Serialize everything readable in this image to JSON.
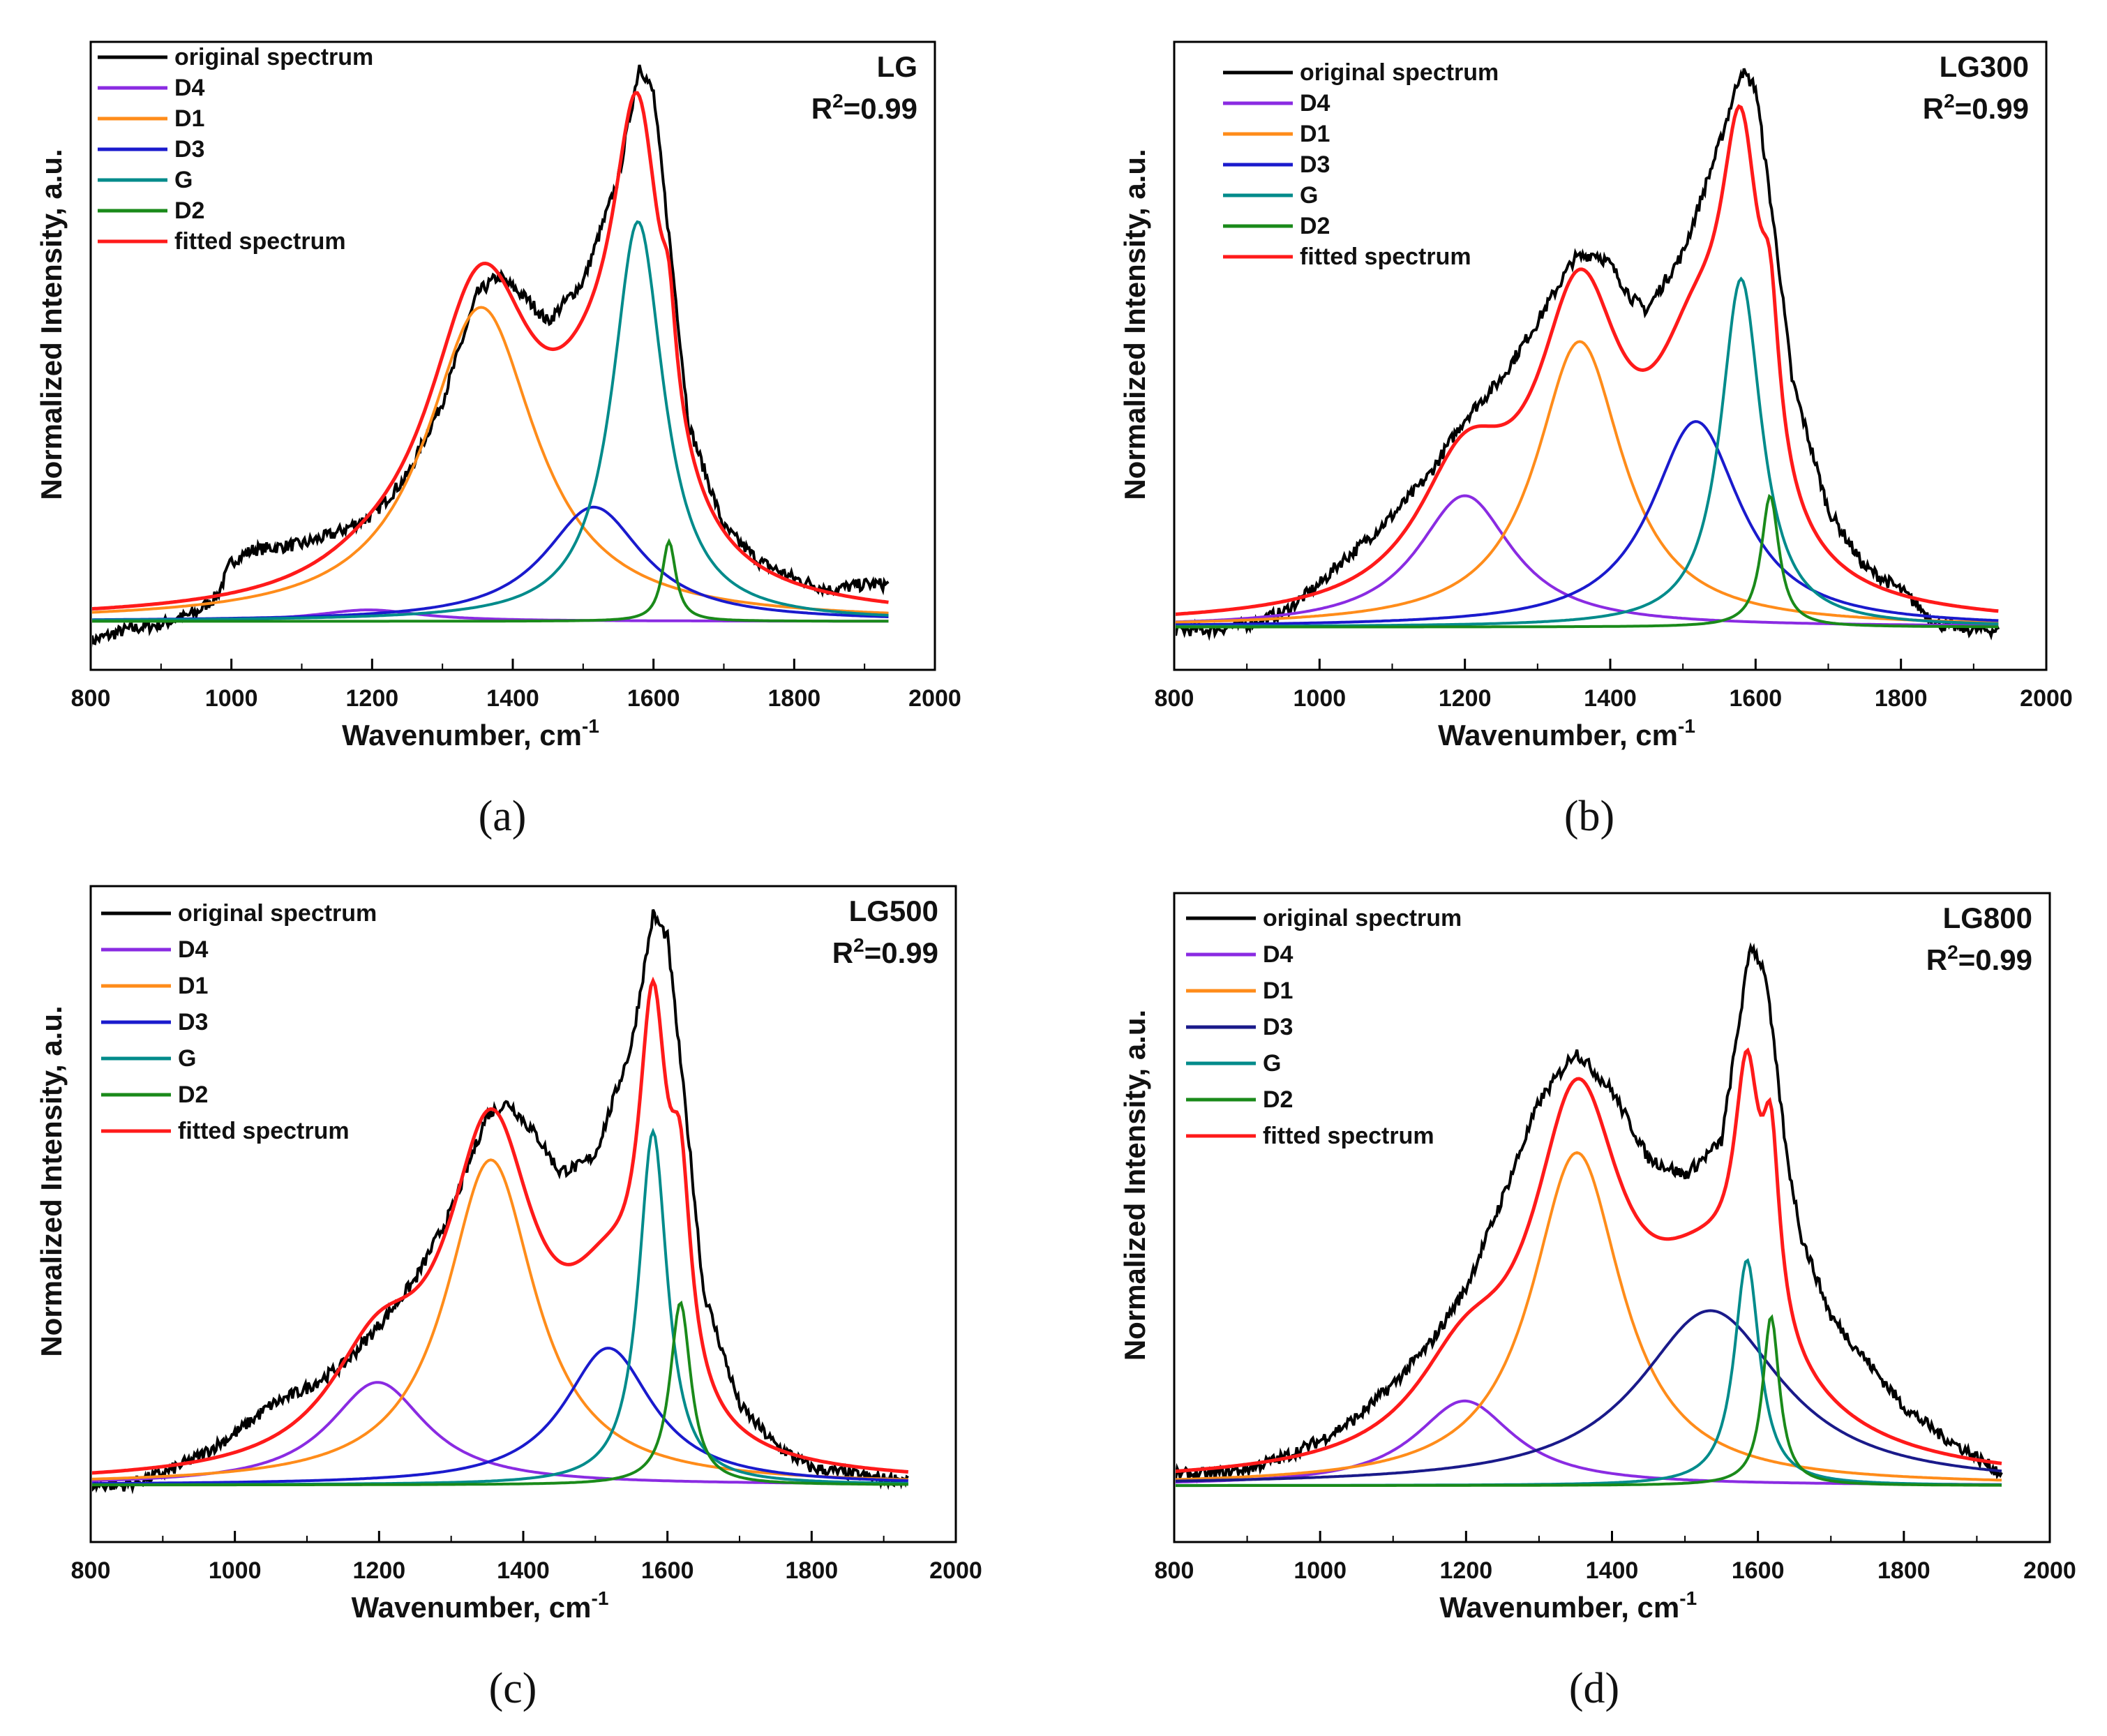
{
  "figure": {
    "axis_unit_superscript": "-1"
  },
  "chart_data": [
    {
      "type": "line",
      "panel_label": "(a)",
      "sample_label": "LG",
      "r_squared_text": "R2=0.99",
      "r_squared_prefix": "R",
      "r_squared_exponent": "2",
      "r_squared_value": "=0.99",
      "xlabel": "Wavenumber, cm-1",
      "xlabel_text": "Wavenumber, cm",
      "ylabel": "Normalized Intensity, a.u.",
      "xlim": [
        800,
        2000
      ],
      "ylim": [
        -0.05,
        1.05
      ],
      "x_ticks": [
        800,
        1000,
        1200,
        1400,
        1600,
        1800,
        2000
      ],
      "x_tick_labels": [
        "800",
        "1000",
        "1200",
        "1400",
        "1600",
        "1800",
        "2000"
      ],
      "x_data_range": [
        800,
        1935
      ],
      "legend": [
        "original spectrum",
        "D4",
        "D1",
        "D3",
        "G",
        "D2",
        "fitted spectrum"
      ],
      "series": [
        {
          "name": "original spectrum",
          "color": "#000000",
          "x": [
            800,
            850,
            900,
            950,
            980,
            1000,
            1030,
            1100,
            1150,
            1200,
            1250,
            1300,
            1350,
            1380,
            1420,
            1450,
            1500,
            1550,
            1580,
            1600,
            1630,
            1650,
            1700,
            1750,
            1800,
            1850,
            1900,
            1935
          ],
          "values": [
            0.0,
            0.02,
            0.03,
            0.05,
            0.08,
            0.14,
            0.16,
            0.17,
            0.19,
            0.22,
            0.29,
            0.42,
            0.61,
            0.64,
            0.6,
            0.56,
            0.63,
            0.81,
            1.01,
            0.96,
            0.62,
            0.38,
            0.2,
            0.14,
            0.11,
            0.09,
            0.1,
            0.1
          ]
        },
        {
          "name": "D4",
          "color": "#8a2be2",
          "peak_center": 1195,
          "peak_height": 0.02,
          "peak_width": 180
        },
        {
          "name": "D1",
          "color": "#ff8c1a",
          "peak_center": 1355,
          "peak_height": 0.55,
          "peak_width": 190
        },
        {
          "name": "D3",
          "color": "#1a1acd",
          "peak_center": 1515,
          "peak_height": 0.2,
          "peak_width": 170
        },
        {
          "name": "G",
          "color": "#008b8b",
          "peak_center": 1578,
          "peak_height": 0.7,
          "peak_width": 88
        },
        {
          "name": "D2",
          "color": "#1a8a1a",
          "peak_center": 1622,
          "peak_height": 0.14,
          "peak_width": 24
        },
        {
          "name": "fitted spectrum",
          "color": "#ff1a1a",
          "fit_of": [
            "D4",
            "D1",
            "D3",
            "G",
            "D2"
          ]
        }
      ],
      "baseline_level": 0.035
    },
    {
      "type": "line",
      "panel_label": "(b)",
      "sample_label": "LG300",
      "r_squared_text": "R2=0.99",
      "r_squared_prefix": "R",
      "r_squared_exponent": "2",
      "r_squared_value": "=0.99",
      "xlabel": "Wavenumber, cm-1",
      "xlabel_text": "Wavenumber, cm",
      "ylabel": "Normalized Intensity, a.u.",
      "xlim": [
        800,
        2000
      ],
      "ylim": [
        -0.05,
        1.05
      ],
      "x_ticks": [
        800,
        1000,
        1200,
        1400,
        1600,
        1800,
        2000
      ],
      "x_tick_labels": [
        "800",
        "1000",
        "1200",
        "1400",
        "1600",
        "1800",
        "2000"
      ],
      "x_data_range": [
        800,
        1935
      ],
      "legend": [
        "original spectrum",
        "D4",
        "D1",
        "D3",
        "G",
        "D2",
        "fitted spectrum"
      ],
      "series": [
        {
          "name": "original spectrum",
          "color": "#000000",
          "x": [
            800,
            850,
            900,
            950,
            1000,
            1030,
            1050,
            1100,
            1150,
            1200,
            1250,
            1300,
            1350,
            1380,
            1400,
            1430,
            1450,
            1500,
            1550,
            1580,
            1600,
            1630,
            1650,
            1700,
            1750,
            1800,
            1850,
            1900,
            1935
          ],
          "values": [
            0.02,
            0.02,
            0.03,
            0.05,
            0.1,
            0.14,
            0.16,
            0.22,
            0.29,
            0.39,
            0.46,
            0.56,
            0.67,
            0.68,
            0.66,
            0.6,
            0.58,
            0.68,
            0.87,
            1.0,
            0.97,
            0.68,
            0.46,
            0.23,
            0.13,
            0.09,
            0.03,
            0.02,
            0.02
          ]
        },
        {
          "name": "D4",
          "color": "#8a2be2",
          "peak_center": 1200,
          "peak_height": 0.23,
          "peak_width": 160
        },
        {
          "name": "D1",
          "color": "#ff8c1a",
          "peak_center": 1358,
          "peak_height": 0.5,
          "peak_width": 145
        },
        {
          "name": "D3",
          "color": "#1a1acd",
          "peak_center": 1518,
          "peak_height": 0.36,
          "peak_width": 150
        },
        {
          "name": "G",
          "color": "#008b8b",
          "peak_center": 1580,
          "peak_height": 0.61,
          "peak_width": 68
        },
        {
          "name": "D2",
          "color": "#1a8a1a",
          "peak_center": 1620,
          "peak_height": 0.23,
          "peak_width": 30
        },
        {
          "name": "fitted spectrum",
          "color": "#ff1a1a",
          "fit_of": [
            "D4",
            "D1",
            "D3",
            "G",
            "D2"
          ]
        }
      ],
      "baseline_level": 0.025
    },
    {
      "type": "line",
      "panel_label": "(c)",
      "sample_label": "LG500",
      "r_squared_text": "R2=0.99",
      "r_squared_prefix": "R",
      "r_squared_exponent": "2",
      "r_squared_value": "=0.99",
      "xlabel": "Wavenumber, cm-1",
      "xlabel_text": "Wavenumber, cm",
      "ylabel": "Normalized Intensity, a.u.",
      "xlim": [
        800,
        2000
      ],
      "ylim": [
        -0.1,
        1.05
      ],
      "x_ticks": [
        800,
        1000,
        1200,
        1400,
        1600,
        1800,
        2000
      ],
      "x_tick_labels": [
        "800",
        "1000",
        "1200",
        "1400",
        "1600",
        "1800",
        "2000"
      ],
      "x_data_range": [
        800,
        1935
      ],
      "legend": [
        "original spectrum",
        "D4",
        "D1",
        "D3",
        "G",
        "D2",
        "fitted spectrum"
      ],
      "series": [
        {
          "name": "original spectrum",
          "color": "#000000",
          "x": [
            800,
            850,
            900,
            950,
            1000,
            1050,
            1100,
            1150,
            1200,
            1250,
            1300,
            1350,
            1380,
            1420,
            1450,
            1480,
            1500,
            1550,
            1580,
            1600,
            1630,
            1650,
            1700,
            1750,
            1800,
            1850,
            1900,
            1935
          ],
          "values": [
            0.0,
            0.0,
            0.02,
            0.05,
            0.09,
            0.14,
            0.17,
            0.21,
            0.28,
            0.36,
            0.48,
            0.65,
            0.67,
            0.61,
            0.55,
            0.56,
            0.58,
            0.77,
            1.0,
            0.96,
            0.6,
            0.34,
            0.14,
            0.07,
            0.03,
            0.02,
            0.01,
            0.01
          ]
        },
        {
          "name": "D4",
          "color": "#8a2be2",
          "peak_center": 1198,
          "peak_height": 0.18,
          "peak_width": 165
        },
        {
          "name": "D1",
          "color": "#ff8c1a",
          "peak_center": 1355,
          "peak_height": 0.57,
          "peak_width": 150
        },
        {
          "name": "D3",
          "color": "#1a1acd",
          "peak_center": 1518,
          "peak_height": 0.24,
          "peak_width": 150
        },
        {
          "name": "G",
          "color": "#008b8b",
          "peak_center": 1580,
          "peak_height": 0.62,
          "peak_width": 48
        },
        {
          "name": "D2",
          "color": "#1a8a1a",
          "peak_center": 1618,
          "peak_height": 0.32,
          "peak_width": 35
        },
        {
          "name": "fitted spectrum",
          "color": "#ff1a1a",
          "fit_of": [
            "D4",
            "D1",
            "D3",
            "G",
            "D2"
          ]
        }
      ],
      "baseline_level": 0.0
    },
    {
      "type": "line",
      "panel_label": "(d)",
      "sample_label": "LG800",
      "r_squared_text": "R2=0.99",
      "r_squared_prefix": "R",
      "r_squared_exponent": "2",
      "r_squared_value": "=0.99",
      "xlabel": "Wavenumber, cm-1",
      "xlabel_text": "Wavenumber, cm",
      "ylabel": "Normalized Intensity, a.u.",
      "xlim": [
        800,
        2000
      ],
      "ylim": [
        -0.1,
        1.05
      ],
      "x_ticks": [
        800,
        1000,
        1200,
        1400,
        1600,
        1800,
        2000
      ],
      "x_tick_labels": [
        "800",
        "1000",
        "1200",
        "1400",
        "1600",
        "1800",
        "2000"
      ],
      "x_data_range": [
        800,
        1935
      ],
      "legend": [
        "original spectrum",
        "D4",
        "D1",
        "D3",
        "G",
        "D2",
        "fitted spectrum"
      ],
      "series": [
        {
          "name": "original spectrum",
          "color": "#000000",
          "x": [
            800,
            850,
            900,
            950,
            1000,
            1050,
            1100,
            1150,
            1200,
            1250,
            1300,
            1350,
            1400,
            1450,
            1500,
            1550,
            1590,
            1610,
            1640,
            1660,
            1700,
            1750,
            1800,
            1850,
            1900,
            1935
          ],
          "values": [
            0.02,
            0.02,
            0.03,
            0.05,
            0.08,
            0.12,
            0.18,
            0.25,
            0.35,
            0.51,
            0.68,
            0.77,
            0.7,
            0.58,
            0.55,
            0.61,
            0.96,
            0.91,
            0.58,
            0.44,
            0.3,
            0.22,
            0.14,
            0.09,
            0.05,
            0.02
          ]
        },
        {
          "name": "D4",
          "color": "#8a2be2",
          "peak_center": 1198,
          "peak_height": 0.15,
          "peak_width": 165
        },
        {
          "name": "D1",
          "color": "#ff8c1a",
          "peak_center": 1352,
          "peak_height": 0.59,
          "peak_width": 150
        },
        {
          "name": "D3",
          "color": "#1a1a8a",
          "peak_center": 1535,
          "peak_height": 0.31,
          "peak_width": 240
        },
        {
          "name": "G",
          "color": "#008b8b",
          "peak_center": 1585,
          "peak_height": 0.4,
          "peak_width": 42
        },
        {
          "name": "D2",
          "color": "#1a8a1a",
          "peak_center": 1618,
          "peak_height": 0.3,
          "peak_width": 28
        },
        {
          "name": "fitted spectrum",
          "color": "#ff1a1a",
          "fit_of": [
            "D4",
            "D1",
            "D3",
            "G",
            "D2"
          ]
        }
      ],
      "baseline_level": 0.0
    }
  ]
}
